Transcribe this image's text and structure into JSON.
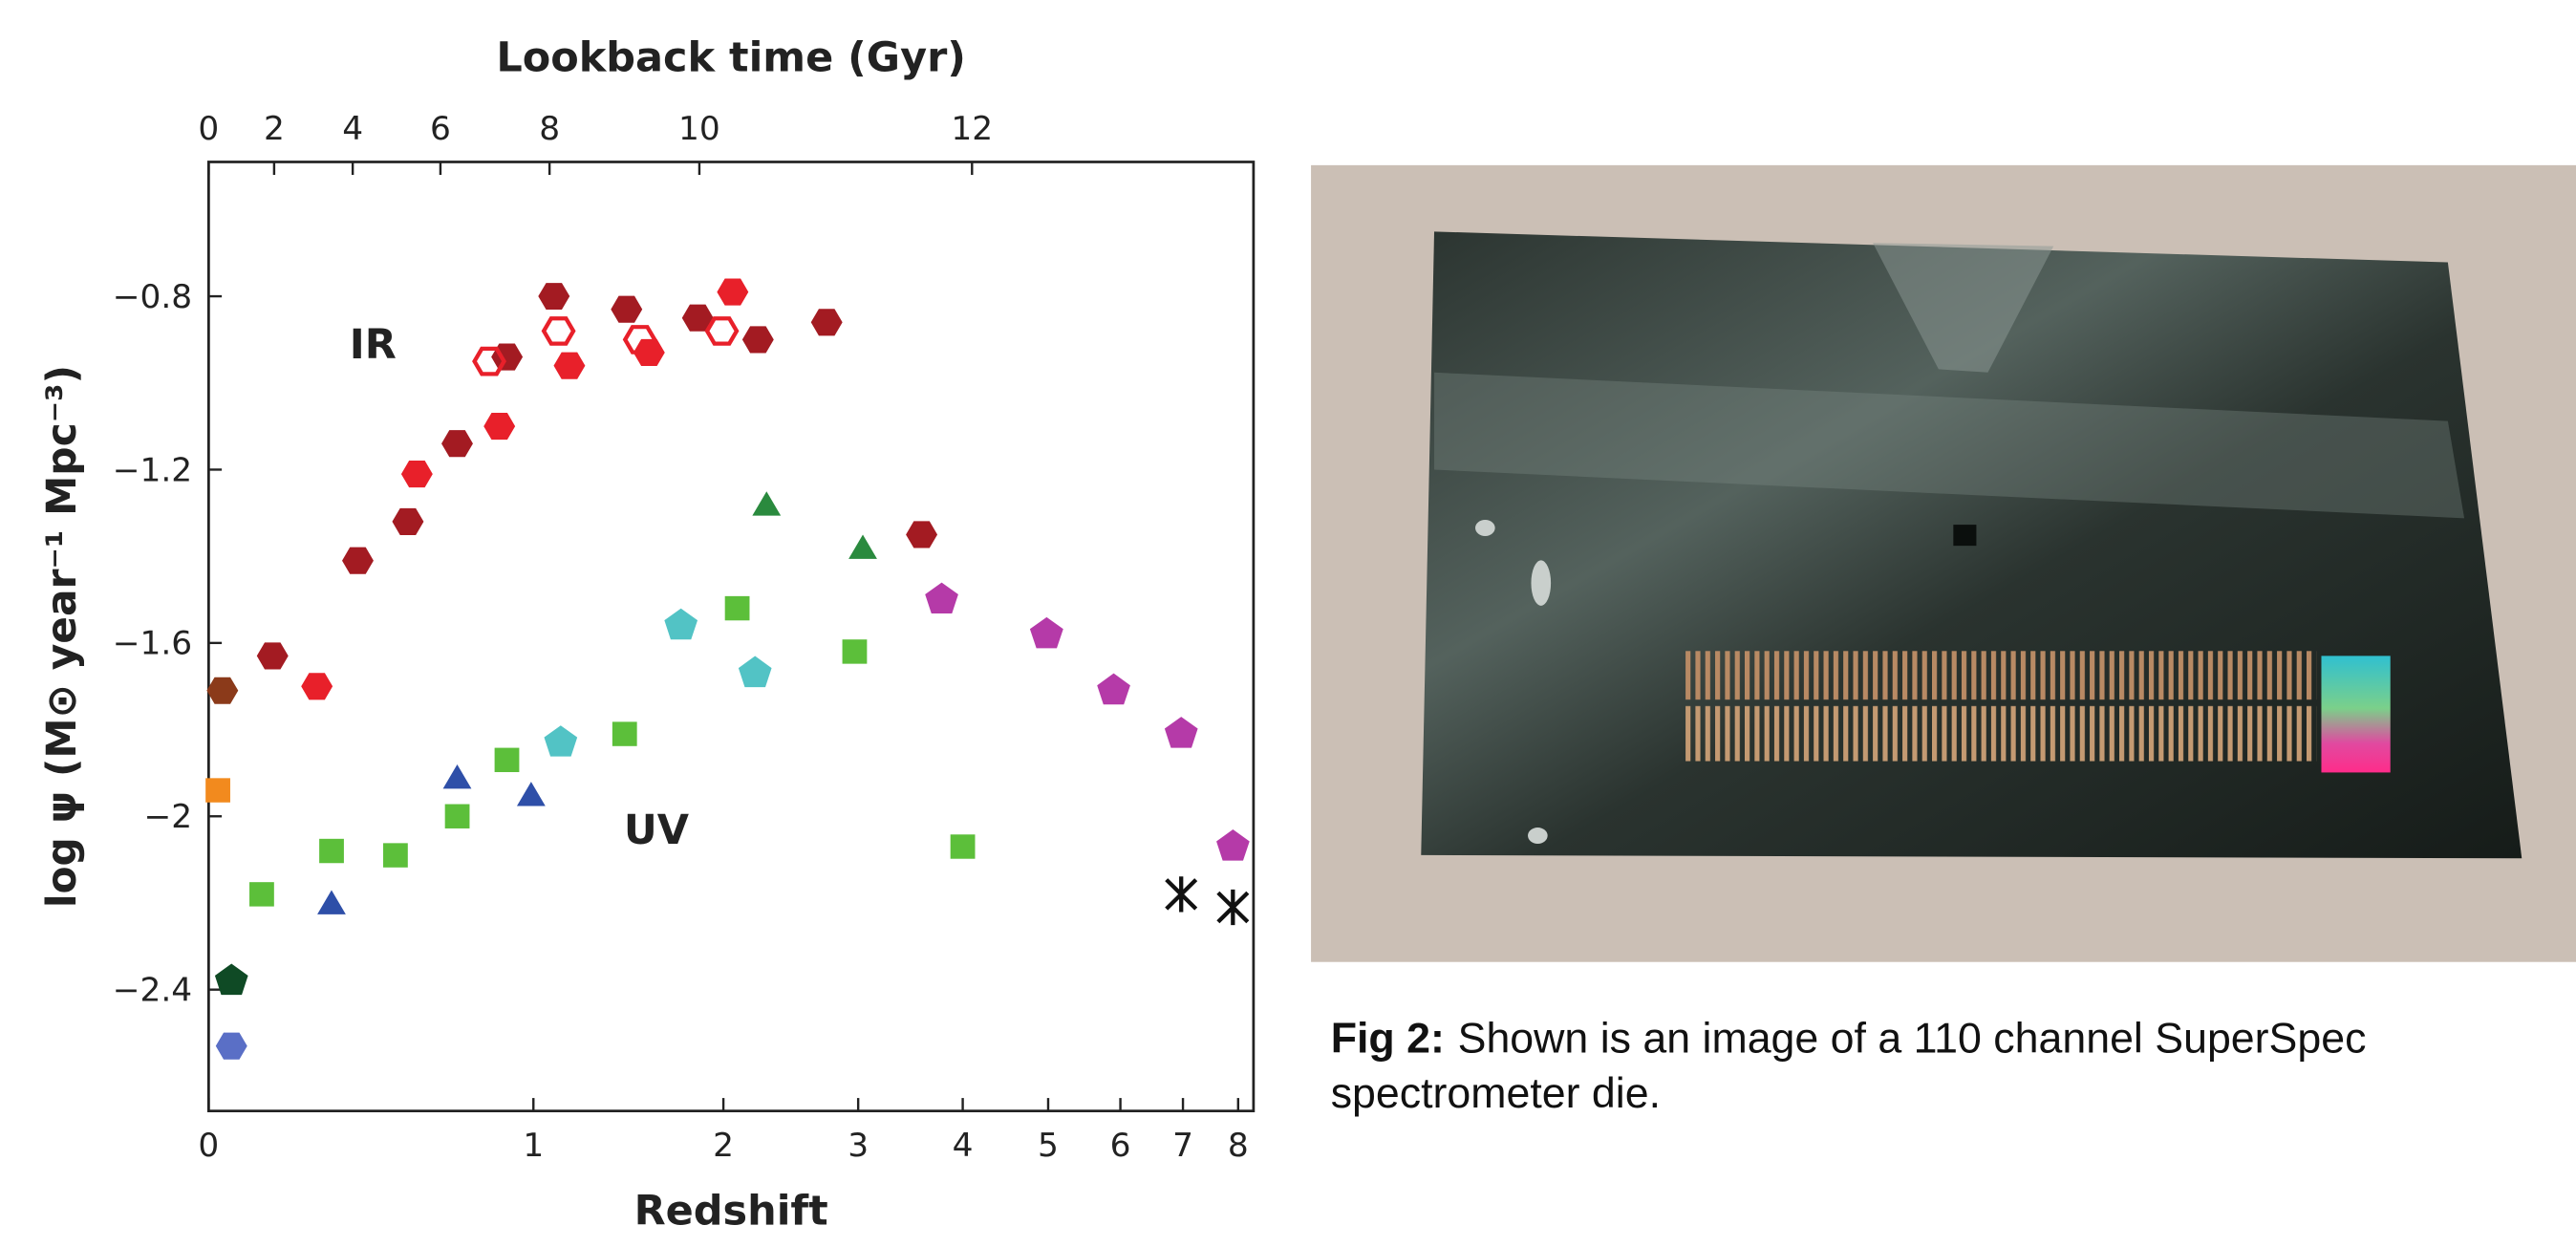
{
  "chart_data": {
    "type": "scatter",
    "xlabel": "Redshift",
    "x2label": "Lookback time (Gyr)",
    "ylabel": "log ψ (M⊙ year⁻¹ Mpc⁻³)",
    "xscale": "log1p",
    "xlim": [
      0,
      8.3
    ],
    "ylim": [
      -2.68,
      -0.49
    ],
    "xticks": [
      0,
      1,
      2,
      3,
      4,
      5,
      6,
      7,
      8
    ],
    "x2ticks": [
      {
        "value": 0,
        "label": "0"
      },
      {
        "value": 0.15,
        "label": "2"
      },
      {
        "value": 0.36,
        "label": "4"
      },
      {
        "value": 0.64,
        "label": "6"
      },
      {
        "value": 1.07,
        "label": "8"
      },
      {
        "value": 1.85,
        "label": "10"
      },
      {
        "value": 4.1,
        "label": "12"
      }
    ],
    "yticks": [
      {
        "value": -0.8,
        "label": "−0.8"
      },
      {
        "value": -1.2,
        "label": "−1.2"
      },
      {
        "value": -1.6,
        "label": "−1.6"
      },
      {
        "value": -2,
        "label": "−2"
      },
      {
        "value": -2.4,
        "label": "−2.4"
      }
    ],
    "annotations": [
      {
        "text": "IR",
        "x": 0.42,
        "y": -0.91
      },
      {
        "text": "UV",
        "x": 1.6,
        "y": -2.03
      }
    ],
    "series": [
      {
        "color": "#a31b22",
        "marker": "hexagon",
        "filled": true,
        "x": [
          0.146,
          0.375,
          0.53,
          0.7,
          0.89,
          1.09,
          1.44,
          1.84,
          2.23,
          2.74,
          3.58
        ],
        "values": [
          -1.63,
          -1.41,
          -1.32,
          -1.14,
          -0.94,
          -0.8,
          -0.83,
          -0.85,
          -0.9,
          -0.86,
          -1.35
        ]
      },
      {
        "color": "#e8202a",
        "marker": "hexagon",
        "filled": true,
        "x": [
          0.26,
          0.56,
          0.86,
          1.16,
          1.56,
          2.06
        ],
        "values": [
          -1.7,
          -1.21,
          -1.1,
          -0.96,
          -0.93,
          -0.79
        ]
      },
      {
        "color": "#e8202a",
        "marker": "hexagon",
        "filled": false,
        "x": [
          0.82,
          1.11,
          1.51,
          1.99
        ],
        "values": [
          -0.95,
          -0.88,
          -0.9,
          -0.88
        ]
      },
      {
        "color": "#5cbf3a",
        "marker": "square",
        "filled": true,
        "x": [
          0.12,
          0.3,
          0.49,
          0.7,
          0.89,
          1.43,
          2.09,
          2.97,
          4.0
        ],
        "values": [
          -2.18,
          -2.08,
          -2.09,
          -2.0,
          -1.87,
          -1.81,
          -1.52,
          -1.62,
          -2.07
        ]
      },
      {
        "color": "#2e4fa8",
        "marker": "triangle",
        "filled": true,
        "x": [
          0.3,
          0.7,
          0.99
        ],
        "values": [
          -2.2,
          -1.91,
          -1.95
        ]
      },
      {
        "color": "#52c3c5",
        "marker": "pentagon",
        "filled": true,
        "x": [
          1.12,
          1.74,
          2.21
        ],
        "values": [
          -1.83,
          -1.56,
          -1.67
        ]
      },
      {
        "color": "#2a8a3e",
        "marker": "triangle",
        "filled": true,
        "x": [
          2.29,
          3.04
        ],
        "values": [
          -1.28,
          -1.38
        ]
      },
      {
        "color": "#b53aa8",
        "marker": "pentagon",
        "filled": true,
        "x": [
          3.78,
          4.98,
          5.9,
          6.97,
          7.9
        ],
        "values": [
          -1.5,
          -1.58,
          -1.71,
          -1.81,
          -2.07
        ]
      },
      {
        "color": "#111111",
        "marker": "cross",
        "filled": false,
        "x": [
          6.97,
          7.9
        ],
        "values": [
          -2.18,
          -2.21
        ]
      },
      {
        "color": "#8b3a1a",
        "marker": "hexagon",
        "filled": true,
        "x": [
          0.03
        ],
        "values": [
          -1.71
        ]
      },
      {
        "color": "#f28a1e",
        "marker": "square",
        "filled": true,
        "x": [
          0.02
        ],
        "values": [
          -1.94
        ]
      },
      {
        "color": "#0f4a25",
        "marker": "pentagon",
        "filled": true,
        "x": [
          0.05
        ],
        "values": [
          -2.38
        ]
      },
      {
        "color": "#5a6fc6",
        "marker": "hexagon",
        "filled": true,
        "x": [
          0.05
        ],
        "values": [
          -2.53
        ]
      }
    ]
  },
  "caption": {
    "label": "Fig 2:",
    "text": "Shown is an image of a 110 channel SuperSpec",
    "text2": "spectrometer die."
  }
}
